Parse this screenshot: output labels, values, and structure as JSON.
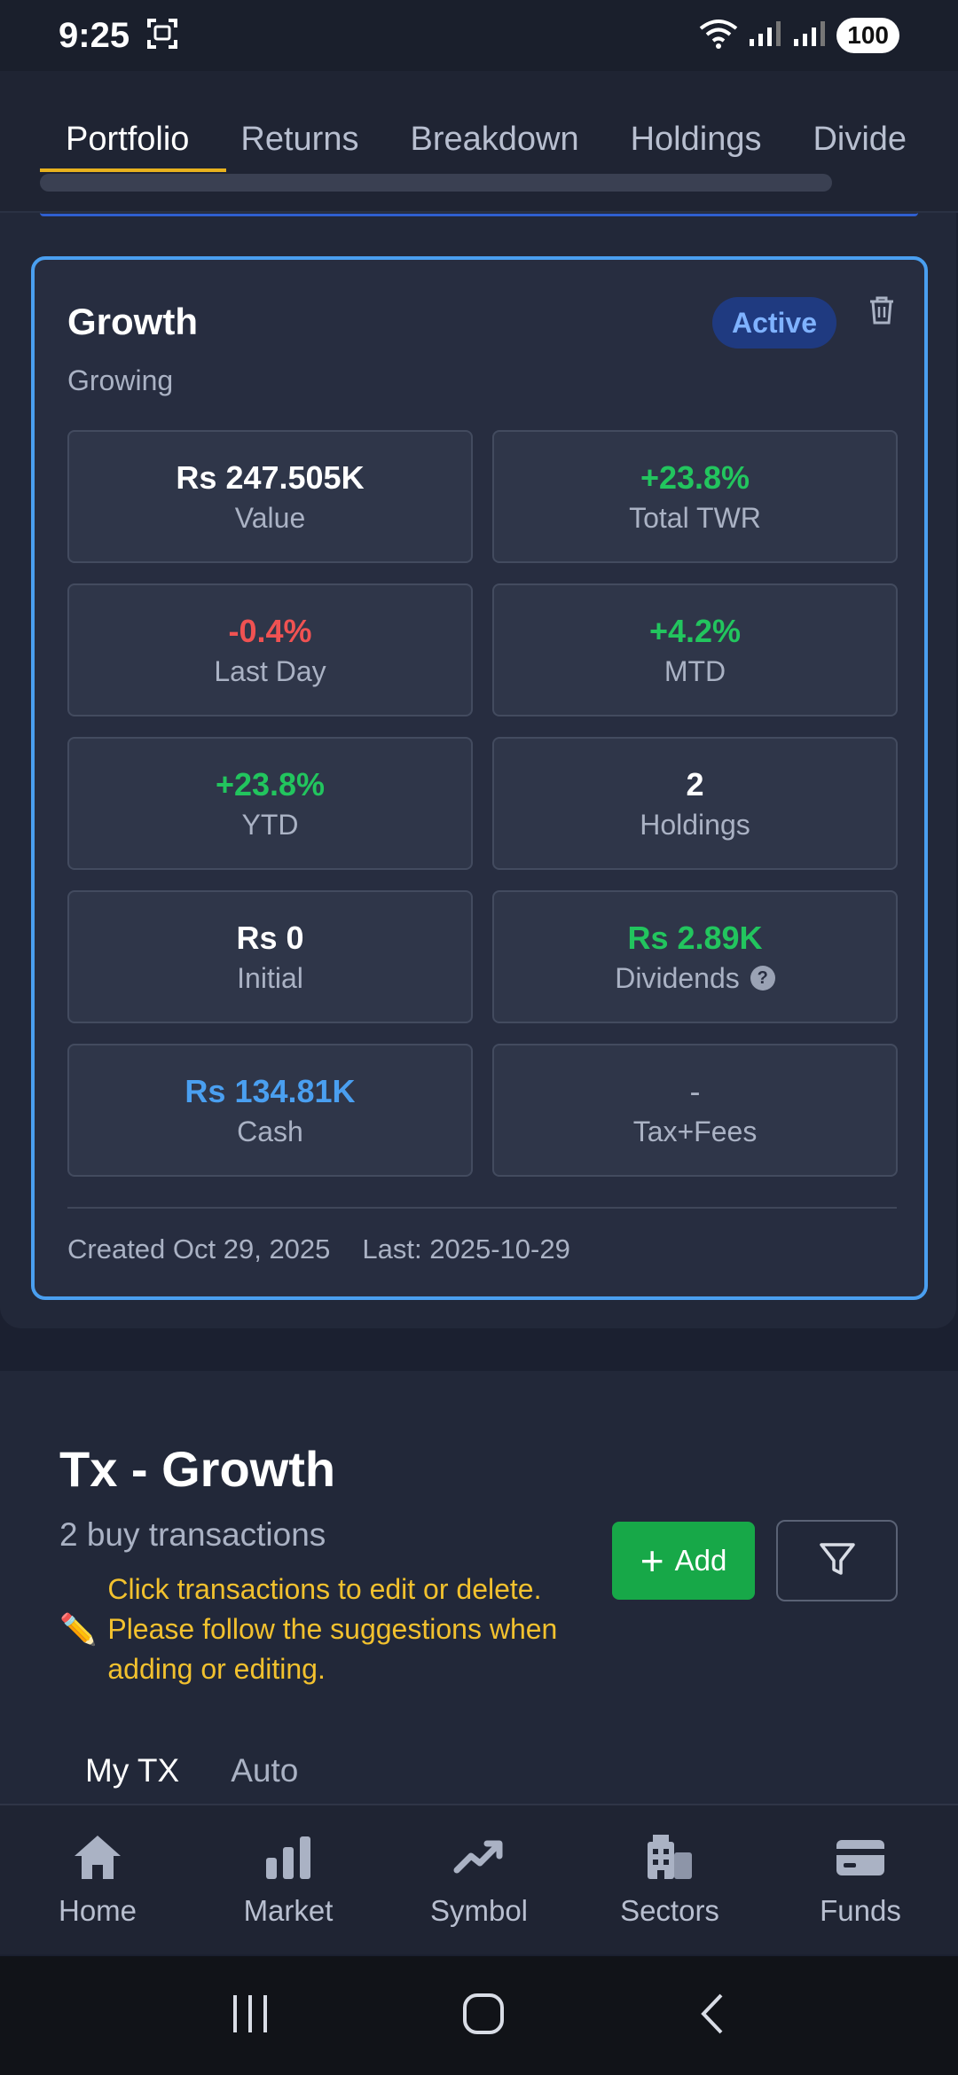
{
  "status_bar": {
    "time": "9:25",
    "battery": "100"
  },
  "tabs": [
    {
      "label": "Portfolio",
      "active": true
    },
    {
      "label": "Returns",
      "active": false
    },
    {
      "label": "Breakdown",
      "active": false
    },
    {
      "label": "Holdings",
      "active": false
    },
    {
      "label": "Divide",
      "active": false
    }
  ],
  "portfolio_card": {
    "title": "Growth",
    "subtitle": "Growing",
    "badge": "Active",
    "metrics": [
      {
        "value": "Rs 247.505K",
        "label": "Value"
      },
      {
        "value": "+23.8%",
        "label": "Total TWR"
      },
      {
        "value": "-0.4%",
        "label": "Last Day"
      },
      {
        "value": "+4.2%",
        "label": "MTD"
      },
      {
        "value": "+23.8%",
        "label": "YTD"
      },
      {
        "value": "2",
        "label": "Holdings"
      },
      {
        "value": "Rs 0",
        "label": "Initial"
      },
      {
        "value": "Rs 2.89K",
        "label": "Dividends"
      },
      {
        "value": "Rs 134.81K",
        "label": "Cash"
      },
      {
        "value": "-",
        "label": "Tax+Fees"
      }
    ],
    "created": "Created Oct 29, 2025",
    "last": "Last: 2025-10-29"
  },
  "transactions": {
    "title": "Tx - Growth",
    "subtitle": "2 buy transactions",
    "note": "Click transactions to edit or delete. Please follow the suggestions when adding or editing.",
    "add_label": "Add",
    "subtabs": [
      {
        "label": "My TX",
        "active": true
      },
      {
        "label": "Auto",
        "active": false
      }
    ]
  },
  "bottom_nav": [
    {
      "label": "Home",
      "icon": "home-icon"
    },
    {
      "label": "Market",
      "icon": "bar-chart-icon"
    },
    {
      "label": "Symbol",
      "icon": "trend-up-icon"
    },
    {
      "label": "Sectors",
      "icon": "building-icon"
    },
    {
      "label": "Funds",
      "icon": "wallet-icon"
    }
  ],
  "colors": {
    "positive": "#22c55e",
    "negative": "#f05252",
    "accent": "#4a9ff0",
    "tab_indicator": "#e8b21e",
    "add_button": "#17a848",
    "note_text": "#f2c12e"
  }
}
